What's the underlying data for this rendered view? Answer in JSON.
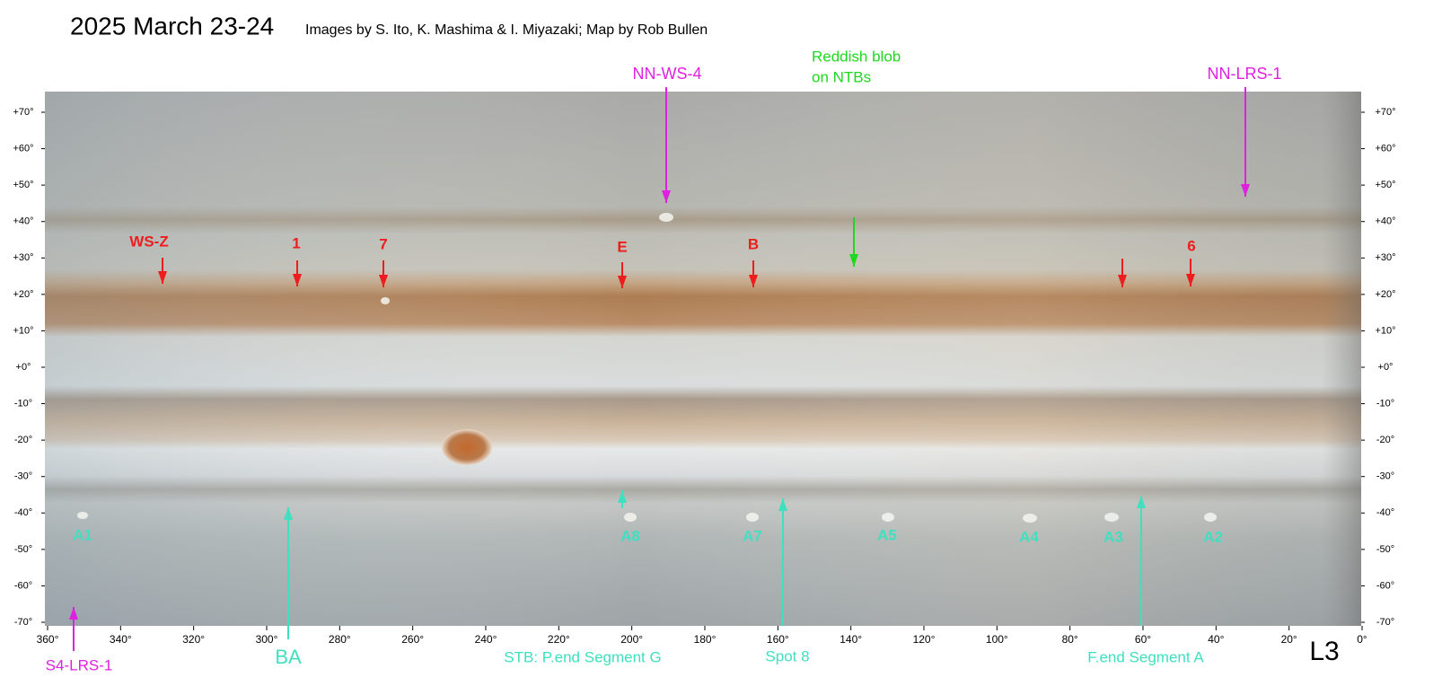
{
  "header": {
    "title": "2025 March 23-24",
    "credit": "Images by S. Ito, K. Mashima & I. Miyazaki;  Map by Rob Bullen"
  },
  "axes": {
    "lat_labels": [
      "+70°",
      "+60°",
      "+50°",
      "+40°",
      "+30°",
      "+20°",
      "+10°",
      "+0°",
      "-10°",
      "-20°",
      "-30°",
      "-40°",
      "-50°",
      "-60°",
      "-70°"
    ],
    "lon_labels": [
      "360°",
      "340°",
      "320°",
      "300°",
      "280°",
      "260°",
      "240°",
      "220°",
      "200°",
      "180°",
      "160°",
      "140°",
      "120°",
      "100°",
      "80°",
      "60°",
      "40°",
      "20°",
      "0°"
    ]
  },
  "annotations": [
    "WS-Z",
    "1",
    "7",
    "E",
    "B",
    "6",
    "NN-WS-4",
    "NN-LRS-1",
    "A1",
    "A8",
    "A7",
    "A5",
    "A4",
    "A3",
    "A2",
    "BA",
    "STB: P.end Segment G",
    "Spot 8",
    "F.end Segment A",
    "S4-LRS-1"
  ],
  "reddish_blob": [
    "Reddish blob",
    "on NTBs"
  ],
  "filter_label": "L3"
}
